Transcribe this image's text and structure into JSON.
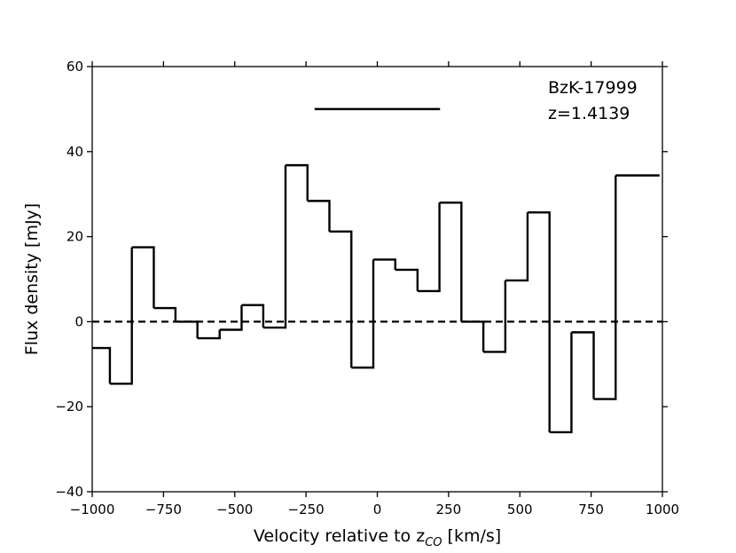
{
  "chart_data": {
    "type": "line",
    "style": "step",
    "xlabel": "Velocity relative to z",
    "xlabel_sub": "CO",
    "xlabel_unit": "[km/s]",
    "ylabel": "Flux density [mJy]",
    "xlim": [
      -1000,
      1000
    ],
    "ylim": [
      -40,
      60
    ],
    "xticks": [
      -1000,
      -750,
      -500,
      -250,
      0,
      250,
      500,
      750,
      1000
    ],
    "xtick_labels": [
      "−1000",
      "−750",
      "−500",
      "−250",
      "0",
      "250",
      "500",
      "750",
      "1000"
    ],
    "yticks": [
      -40,
      -20,
      0,
      20,
      40,
      60
    ],
    "ytick_labels": [
      "−40",
      "−20",
      "0",
      "20",
      "40",
      "60"
    ],
    "grid": false,
    "bins": {
      "edges": [
        -1000,
        -938,
        -861,
        -784,
        -708,
        -631,
        -553,
        -476,
        -400,
        -322,
        -245,
        -168,
        -91,
        -14,
        63,
        141,
        218,
        295,
        372,
        449,
        527,
        604,
        681,
        759,
        836,
        913,
        990
      ],
      "values": [
        -6.2,
        -14.6,
        17.5,
        3.2,
        0,
        -3.9,
        -1.9,
        3.9,
        -1.4,
        36.8,
        28.4,
        21.2,
        -10.8,
        14.6,
        12.2,
        7.2,
        28,
        0,
        -7.1,
        9.7,
        25.7,
        -26,
        -2.5,
        -18.2,
        34.4,
        34.4
      ]
    },
    "zero_line": {
      "y": 0,
      "style": "dashed"
    },
    "velocity_bar": {
      "x": [
        -220,
        220
      ],
      "y": 50
    },
    "annotations": [
      "BzK-17999",
      "z=1.4139"
    ]
  }
}
